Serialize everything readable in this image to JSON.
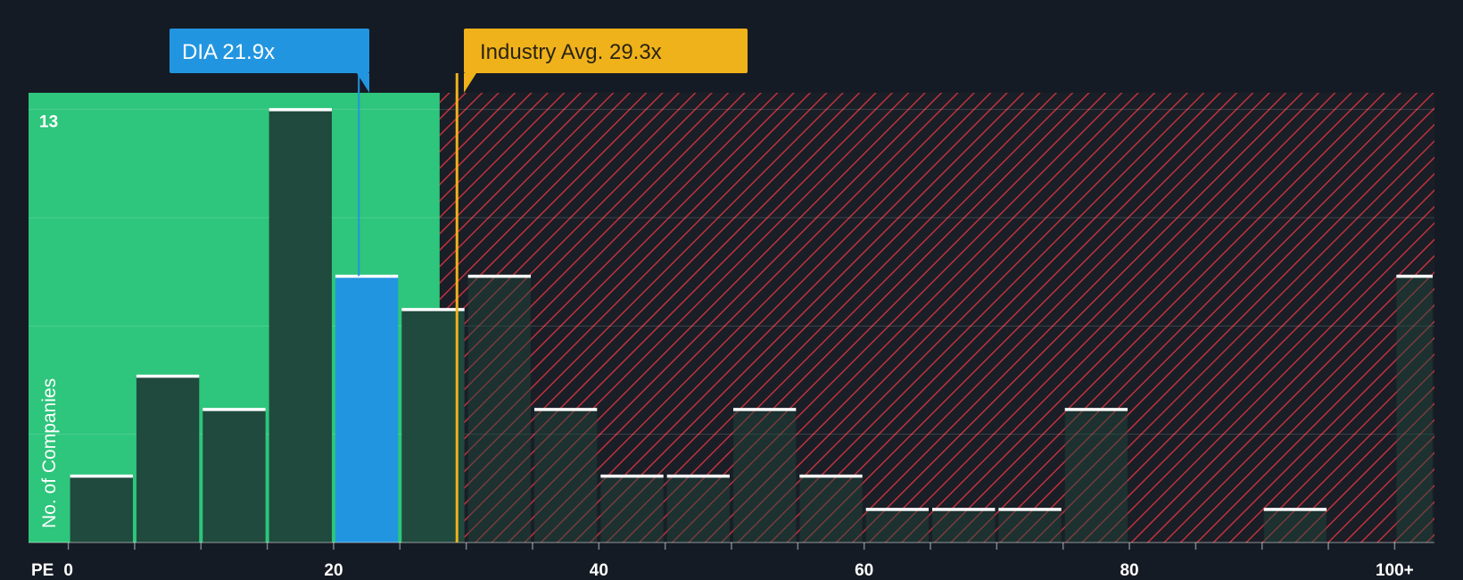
{
  "chart_data": {
    "type": "bar",
    "title": "",
    "xlabel": "PE",
    "ylabel": "No. of Companies",
    "xlim": [
      -3,
      103
    ],
    "ylim": [
      0,
      13.5
    ],
    "xticks": [
      {
        "value": 0,
        "label": "0"
      },
      {
        "value": 20,
        "label": "20"
      },
      {
        "value": 40,
        "label": "40"
      },
      {
        "value": 60,
        "label": "60"
      },
      {
        "value": 80,
        "label": "80"
      },
      {
        "value": 100,
        "label": "100+"
      }
    ],
    "ymax_label": "13",
    "ymax_value": 13,
    "bin_width": 5,
    "bins": [
      {
        "start": 0,
        "count": 2
      },
      {
        "start": 5,
        "count": 5
      },
      {
        "start": 10,
        "count": 4
      },
      {
        "start": 15,
        "count": 13
      },
      {
        "start": 20,
        "count": 8,
        "highlight": true
      },
      {
        "start": 25,
        "count": 7
      },
      {
        "start": 30,
        "count": 8
      },
      {
        "start": 35,
        "count": 4
      },
      {
        "start": 40,
        "count": 2
      },
      {
        "start": 45,
        "count": 2
      },
      {
        "start": 50,
        "count": 4
      },
      {
        "start": 55,
        "count": 2
      },
      {
        "start": 60,
        "count": 1
      },
      {
        "start": 65,
        "count": 1
      },
      {
        "start": 70,
        "count": 1
      },
      {
        "start": 75,
        "count": 4
      },
      {
        "start": 80,
        "count": 0
      },
      {
        "start": 85,
        "count": 0
      },
      {
        "start": 90,
        "count": 1
      },
      {
        "start": 95,
        "count": 0
      },
      {
        "start": 100,
        "count": 8
      }
    ],
    "company": {
      "label": "DIA 21.9x",
      "value": 21.9
    },
    "industry_avg": {
      "label": "Industry Avg. 29.3x",
      "value": 29.3
    },
    "fair_zone_end": 28,
    "colors": {
      "background": "#151b24",
      "fair_zone": "#2ec57c",
      "bar": "#1f4a3d",
      "highlight": "#2295e0",
      "over_zone": "#c0323c",
      "hatch_bg": "#1a1e26",
      "industry": "#f0b21a",
      "bar_cap": "#ffffff"
    }
  }
}
